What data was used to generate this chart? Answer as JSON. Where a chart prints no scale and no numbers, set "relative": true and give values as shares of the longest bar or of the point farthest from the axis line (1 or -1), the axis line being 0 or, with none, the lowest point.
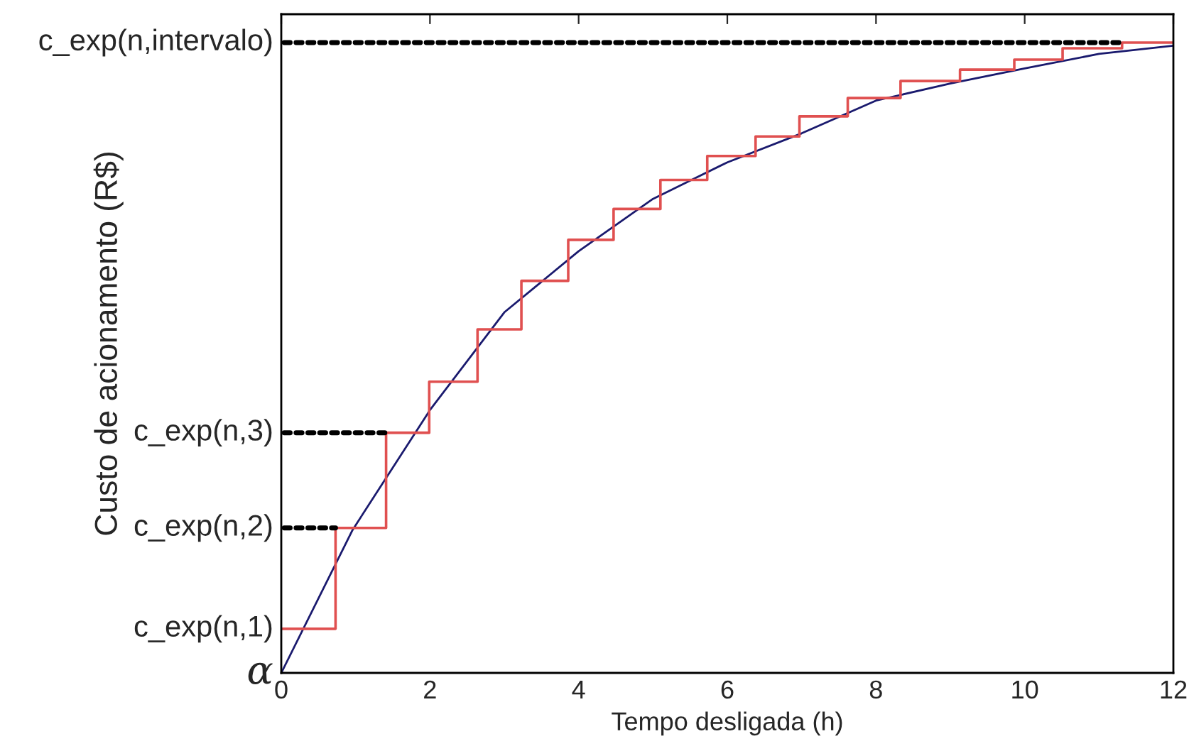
{
  "chart_data": {
    "type": "line",
    "relative": true,
    "xlabel": "Tempo desligada (h)",
    "ylabel": "Custo de acionamento (R$)",
    "xlim": [
      0,
      12
    ],
    "xticks": [
      0,
      2,
      4,
      6,
      8,
      10,
      12
    ],
    "grid": false,
    "legend": false,
    "series": [
      {
        "color": "#1a1a6e",
        "x": [
          0,
          0.96,
          2,
          3,
          4,
          5,
          6,
          7,
          8,
          9,
          10,
          11,
          12
        ],
        "values": [
          0,
          0.227,
          0.417,
          0.572,
          0.669,
          0.752,
          0.81,
          0.856,
          0.908,
          0.935,
          0.959,
          0.982,
          0.995
        ]
      },
      {
        "type": "step",
        "color": "#e05050",
        "x": [
          0,
          0.73,
          1.41,
          1.99,
          2.64,
          3.23,
          3.86,
          4.47,
          5.1,
          5.73,
          6.38,
          6.97,
          7.62,
          8.33,
          9.13,
          9.86,
          10.51,
          11.31,
          12
        ],
        "values": [
          0.07,
          0.23,
          0.381,
          0.462,
          0.545,
          0.622,
          0.687,
          0.736,
          0.782,
          0.82,
          0.851,
          0.883,
          0.912,
          0.939,
          0.957,
          0.973,
          0.991,
          1.0,
          1.0
        ]
      }
    ],
    "annotations": [
      {
        "text": "c_exp(n,1)",
        "x": 0,
        "y": 0.07
      },
      {
        "text": "c_exp(n,2)",
        "x": 0.73,
        "y": 0.23
      },
      {
        "text": "c_exp(n,3)",
        "x": 1.41,
        "y": 0.381
      },
      {
        "text": "c_exp(n,intervalo)",
        "x": 11.31,
        "y": 1.0
      },
      {
        "text": "α",
        "x": 0,
        "y": 0
      }
    ]
  }
}
